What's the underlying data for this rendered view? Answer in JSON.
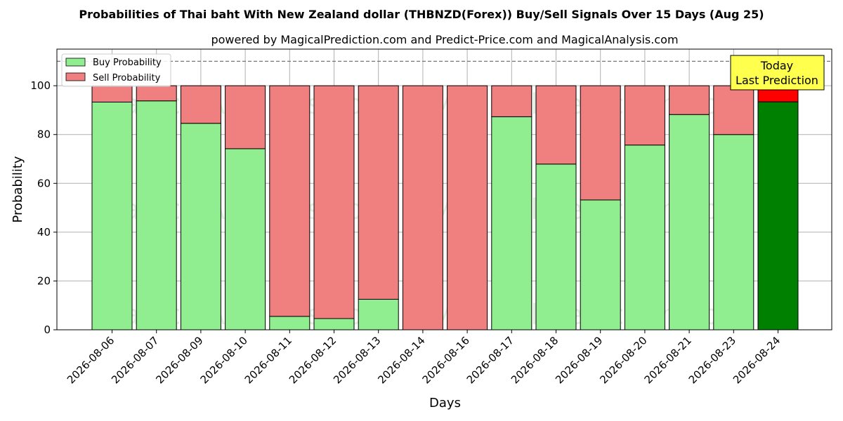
{
  "chart_data": {
    "type": "bar",
    "title": "Probabilities of Thai baht With New Zealand dollar (THBNZD(Forex)) Buy/Sell Signals Over 15 Days (Aug 25)",
    "subtitle": "powered by MagicalPrediction.com and Predict-Price.com and MagicalAnalysis.com",
    "xlabel": "Days",
    "ylabel": "Probability",
    "ylim": [
      0,
      115
    ],
    "yticks": [
      0,
      20,
      40,
      60,
      80,
      100
    ],
    "grid": true,
    "legend_position": "top-left",
    "reference_line": 110,
    "categories": [
      "2026-08-06",
      "2026-08-07",
      "2026-08-09",
      "2026-08-10",
      "2026-08-11",
      "2026-08-12",
      "2026-08-13",
      "2026-08-14",
      "2026-08-16",
      "2026-08-17",
      "2026-08-18",
      "2026-08-19",
      "2026-08-20",
      "2026-08-21",
      "2026-08-23",
      "2026-08-24"
    ],
    "series": [
      {
        "name": "Buy Probability",
        "color": "#90ee90",
        "values": [
          93.3,
          93.8,
          84.6,
          74.2,
          5.5,
          4.6,
          12.5,
          0,
          0,
          87.3,
          67.9,
          53.2,
          75.7,
          88.2,
          80.0,
          93.4
        ]
      },
      {
        "name": "Sell Probability",
        "color": "#f08080",
        "values": [
          6.7,
          6.2,
          15.4,
          25.8,
          94.5,
          95.4,
          87.5,
          100,
          100,
          12.7,
          32.1,
          46.8,
          24.3,
          11.8,
          20.0,
          6.6
        ]
      }
    ],
    "highlight": {
      "index": 15,
      "buy_color": "#008000",
      "sell_color": "#ff0000"
    },
    "annotation": {
      "lines": [
        "Today",
        "Last Prediction"
      ],
      "background": "#ffff4d"
    },
    "watermarks": [
      "MagicalAnalysis.com",
      "MagicalPrediction.com"
    ]
  }
}
